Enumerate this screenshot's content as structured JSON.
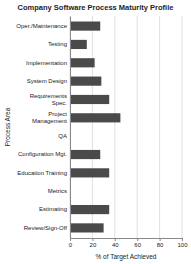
{
  "chart_data": {
    "type": "bar",
    "orientation": "horizontal",
    "title": "Company Software Process Maturity Profile",
    "categories": [
      "Review/Sign-Off",
      "Estimating",
      "Metrics",
      "Education Training",
      "Configuration Mgt.",
      "QA",
      "Project\nManagement",
      "Requirements\nSpec.",
      "System Design",
      "Implementation",
      "Testing",
      "Oper./Maintenance"
    ],
    "values": [
      30,
      35,
      0,
      35,
      27,
      0,
      45,
      35,
      28,
      22,
      15,
      27
    ],
    "color": "#4a4a4a",
    "xlabel": "% of Target Achieved",
    "ylabel": "Process Area",
    "xlim": [
      0,
      100
    ],
    "xticks": [
      0,
      20,
      40,
      60,
      80,
      100
    ],
    "grid": true
  }
}
